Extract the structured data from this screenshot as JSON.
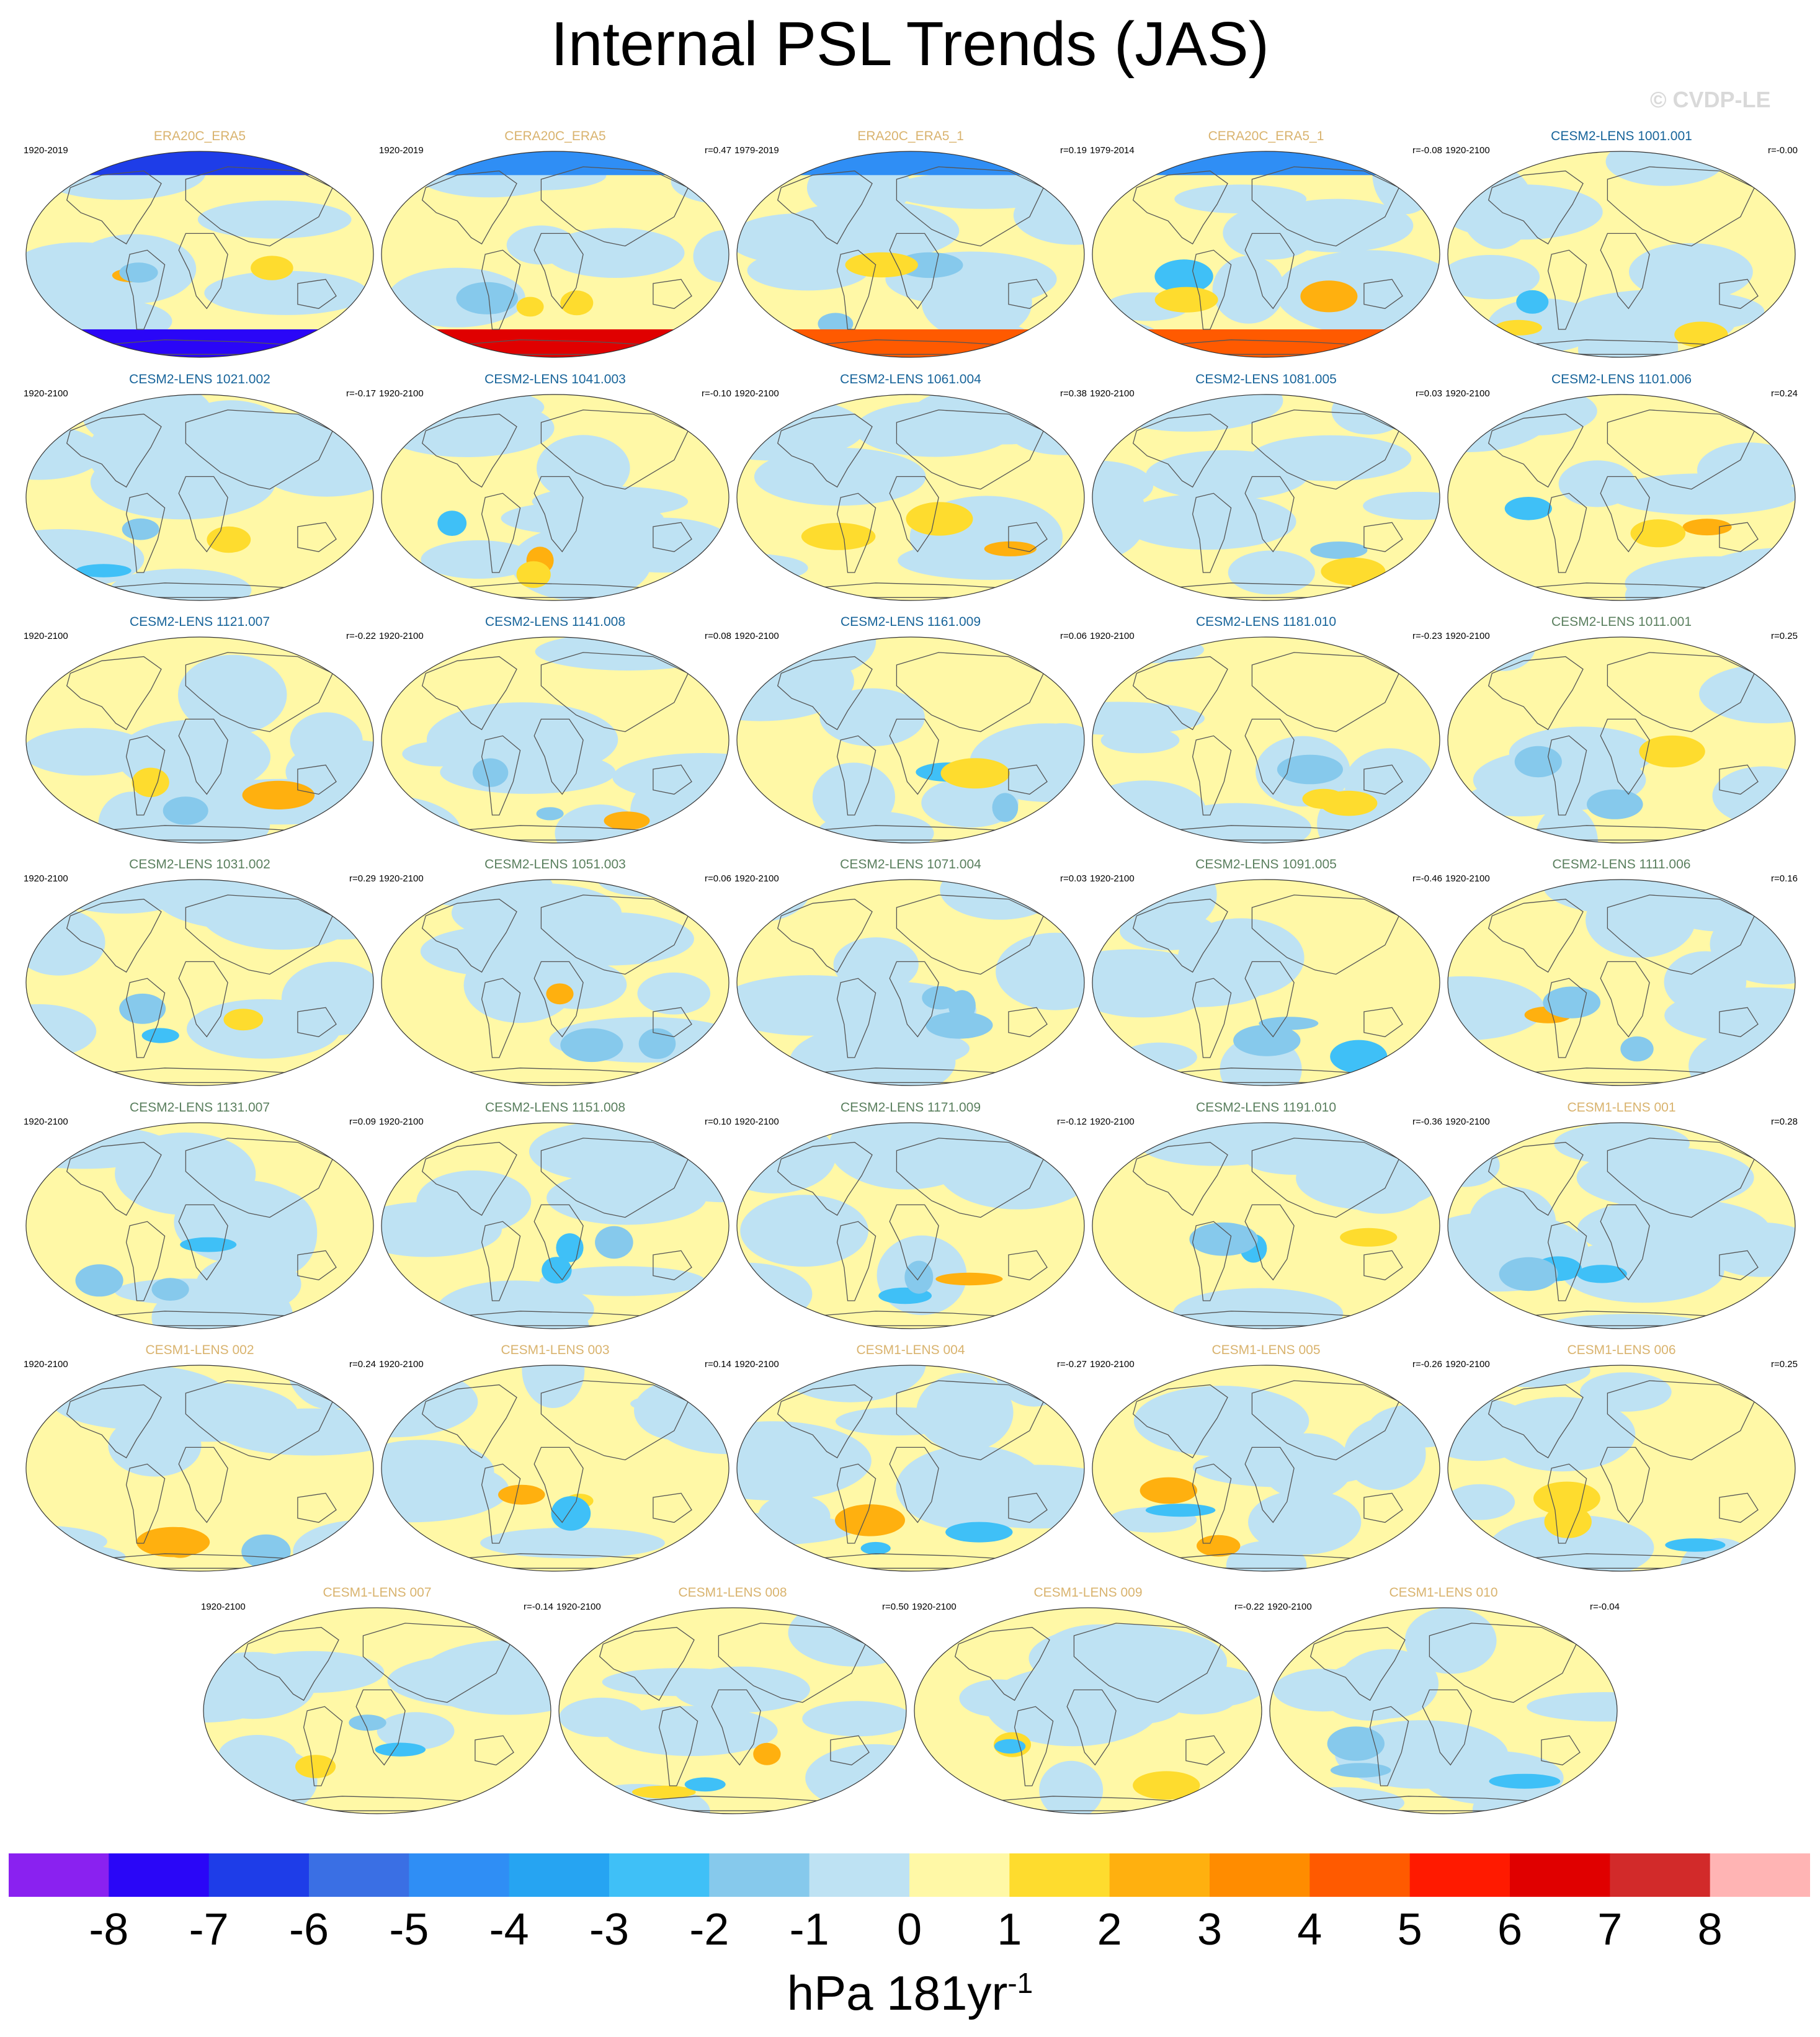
{
  "title": "Internal PSL Trends (JAS)",
  "watermark": "© CVDP-LE",
  "colors": {
    "reanalysis_title": "#d9b36e",
    "cesm2_1001_series": "#17649a",
    "cesm2_1011_series": "#5a7f5e",
    "cesm1_title": "#d9b36e"
  },
  "colorbar": {
    "colors": [
      "#8a21f0",
      "#2a06f7",
      "#1e3de8",
      "#3a6fe4",
      "#2f8ef5",
      "#26a4f2",
      "#3fc0f7",
      "#86c9ec",
      "#bee2f3",
      "#fff8a6",
      "#fedc2e",
      "#ffb00f",
      "#ff8c00",
      "#ff5a00",
      "#ff1a00",
      "#e00000",
      "#d22a2a",
      "#ffb4b4"
    ],
    "tick_labels": [
      "-8",
      "-7",
      "-6",
      "-5",
      "-4",
      "-3",
      "-2",
      "-1",
      "0",
      "1",
      "2",
      "3",
      "4",
      "5",
      "6",
      "7",
      "8"
    ],
    "unit": "hPa 181yr",
    "unit_exponent": "-1"
  },
  "panels": [
    {
      "title": "ERA20C_ERA5",
      "period": "1920-2019",
      "r": "",
      "group": "reanalysis"
    },
    {
      "title": "CERA20C_ERA5",
      "period": "1920-2019",
      "r": "r=0.47",
      "group": "reanalysis"
    },
    {
      "title": "ERA20C_ERA5_1",
      "period": "1979-2019",
      "r": "r=0.19",
      "group": "reanalysis"
    },
    {
      "title": "CERA20C_ERA5_1",
      "period": "1979-2014",
      "r": "r=-0.08",
      "group": "reanalysis"
    },
    {
      "title": "CESM2-LENS 1001.001",
      "period": "1920-2100",
      "r": "r=-0.00",
      "group": "cesm2a"
    },
    {
      "title": "CESM2-LENS 1021.002",
      "period": "1920-2100",
      "r": "r=-0.17",
      "group": "cesm2a"
    },
    {
      "title": "CESM2-LENS 1041.003",
      "period": "1920-2100",
      "r": "r=-0.10",
      "group": "cesm2a"
    },
    {
      "title": "CESM2-LENS 1061.004",
      "period": "1920-2100",
      "r": "r=0.38",
      "group": "cesm2a"
    },
    {
      "title": "CESM2-LENS 1081.005",
      "period": "1920-2100",
      "r": "r=0.03",
      "group": "cesm2a"
    },
    {
      "title": "CESM2-LENS 1101.006",
      "period": "1920-2100",
      "r": "r=0.24",
      "group": "cesm2a"
    },
    {
      "title": "CESM2-LENS 1121.007",
      "period": "1920-2100",
      "r": "r=-0.22",
      "group": "cesm2a"
    },
    {
      "title": "CESM2-LENS 1141.008",
      "period": "1920-2100",
      "r": "r=0.08",
      "group": "cesm2a"
    },
    {
      "title": "CESM2-LENS 1161.009",
      "period": "1920-2100",
      "r": "r=0.06",
      "group": "cesm2a"
    },
    {
      "title": "CESM2-LENS 1181.010",
      "period": "1920-2100",
      "r": "r=-0.23",
      "group": "cesm2a"
    },
    {
      "title": "CESM2-LENS 1011.001",
      "period": "1920-2100",
      "r": "r=0.25",
      "group": "cesm2b"
    },
    {
      "title": "CESM2-LENS 1031.002",
      "period": "1920-2100",
      "r": "r=0.29",
      "group": "cesm2b"
    },
    {
      "title": "CESM2-LENS 1051.003",
      "period": "1920-2100",
      "r": "r=0.06",
      "group": "cesm2b"
    },
    {
      "title": "CESM2-LENS 1071.004",
      "period": "1920-2100",
      "r": "r=0.03",
      "group": "cesm2b"
    },
    {
      "title": "CESM2-LENS 1091.005",
      "period": "1920-2100",
      "r": "r=-0.46",
      "group": "cesm2b"
    },
    {
      "title": "CESM2-LENS 1111.006",
      "period": "1920-2100",
      "r": "r=0.16",
      "group": "cesm2b"
    },
    {
      "title": "CESM2-LENS 1131.007",
      "period": "1920-2100",
      "r": "r=0.09",
      "group": "cesm2b"
    },
    {
      "title": "CESM2-LENS 1151.008",
      "period": "1920-2100",
      "r": "r=0.10",
      "group": "cesm2b"
    },
    {
      "title": "CESM2-LENS 1171.009",
      "period": "1920-2100",
      "r": "r=-0.12",
      "group": "cesm2b"
    },
    {
      "title": "CESM2-LENS 1191.010",
      "period": "1920-2100",
      "r": "r=-0.36",
      "group": "cesm2b"
    },
    {
      "title": "CESM1-LENS 001",
      "period": "1920-2100",
      "r": "r=0.28",
      "group": "cesm1"
    },
    {
      "title": "CESM1-LENS 002",
      "period": "1920-2100",
      "r": "r=0.24",
      "group": "cesm1"
    },
    {
      "title": "CESM1-LENS 003",
      "period": "1920-2100",
      "r": "r=0.14",
      "group": "cesm1"
    },
    {
      "title": "CESM1-LENS 004",
      "period": "1920-2100",
      "r": "r=-0.27",
      "group": "cesm1"
    },
    {
      "title": "CESM1-LENS 005",
      "period": "1920-2100",
      "r": "r=-0.26",
      "group": "cesm1"
    },
    {
      "title": "CESM1-LENS 006",
      "period": "1920-2100",
      "r": "r=0.25",
      "group": "cesm1"
    },
    {
      "title": "CESM1-LENS 007",
      "period": "1920-2100",
      "r": "r=-0.14",
      "group": "cesm1"
    },
    {
      "title": "CESM1-LENS 008",
      "period": "1920-2100",
      "r": "r=0.50",
      "group": "cesm1"
    },
    {
      "title": "CESM1-LENS 009",
      "period": "1920-2100",
      "r": "r=-0.22",
      "group": "cesm1"
    },
    {
      "title": "CESM1-LENS 010",
      "period": "1920-2100",
      "r": "r=-0.04",
      "group": "cesm1"
    }
  ],
  "chart_data": {
    "type": "heatmap",
    "title": "Internal PSL Trends (JAS)",
    "projection": "Robinson (global maps)",
    "panel_count": 34,
    "layout": "6 rows of 5 maps, final row of 4 maps",
    "colorbar_range": [
      -8,
      8
    ],
    "colorbar_levels": [
      "-8",
      "-7",
      "-6",
      "-5",
      "-4",
      "-3",
      "-2",
      "-1",
      "0",
      "1",
      "2",
      "3",
      "4",
      "5",
      "6",
      "7",
      "8"
    ],
    "units": "hPa 181yr-1",
    "pattern_correlations": [
      {
        "panel": "CERA20C_ERA5",
        "r": 0.47
      },
      {
        "panel": "ERA20C_ERA5_1",
        "r": 0.19
      },
      {
        "panel": "CERA20C_ERA5_1",
        "r": -0.08
      },
      {
        "panel": "CESM2-LENS 1001.001",
        "r": -0.0
      },
      {
        "panel": "CESM2-LENS 1021.002",
        "r": -0.17
      },
      {
        "panel": "CESM2-LENS 1041.003",
        "r": -0.1
      },
      {
        "panel": "CESM2-LENS 1061.004",
        "r": 0.38
      },
      {
        "panel": "CESM2-LENS 1081.005",
        "r": 0.03
      },
      {
        "panel": "CESM2-LENS 1101.006",
        "r": 0.24
      },
      {
        "panel": "CESM2-LENS 1121.007",
        "r": -0.22
      },
      {
        "panel": "CESM2-LENS 1141.008",
        "r": 0.08
      },
      {
        "panel": "CESM2-LENS 1161.009",
        "r": 0.06
      },
      {
        "panel": "CESM2-LENS 1181.010",
        "r": -0.23
      },
      {
        "panel": "CESM2-LENS 1011.001",
        "r": 0.25
      },
      {
        "panel": "CESM2-LENS 1031.002",
        "r": 0.29
      },
      {
        "panel": "CESM2-LENS 1051.003",
        "r": 0.06
      },
      {
        "panel": "CESM2-LENS 1071.004",
        "r": 0.03
      },
      {
        "panel": "CESM2-LENS 1091.005",
        "r": -0.46
      },
      {
        "panel": "CESM2-LENS 1111.006",
        "r": 0.16
      },
      {
        "panel": "CESM2-LENS 1131.007",
        "r": 0.09
      },
      {
        "panel": "CESM2-LENS 1151.008",
        "r": 0.1
      },
      {
        "panel": "CESM2-LENS 1171.009",
        "r": -0.12
      },
      {
        "panel": "CESM2-LENS 1191.010",
        "r": -0.36
      },
      {
        "panel": "CESM1-LENS 001",
        "r": 0.28
      },
      {
        "panel": "CESM1-LENS 002",
        "r": 0.24
      },
      {
        "panel": "CESM1-LENS 003",
        "r": 0.14
      },
      {
        "panel": "CESM1-LENS 004",
        "r": -0.27
      },
      {
        "panel": "CESM1-LENS 005",
        "r": -0.26
      },
      {
        "panel": "CESM1-LENS 006",
        "r": 0.25
      },
      {
        "panel": "CESM1-LENS 007",
        "r": -0.14
      },
      {
        "panel": "CESM1-LENS 008",
        "r": 0.5
      },
      {
        "panel": "CESM1-LENS 009",
        "r": -0.22
      },
      {
        "panel": "CESM1-LENS 010",
        "r": -0.04
      }
    ]
  }
}
